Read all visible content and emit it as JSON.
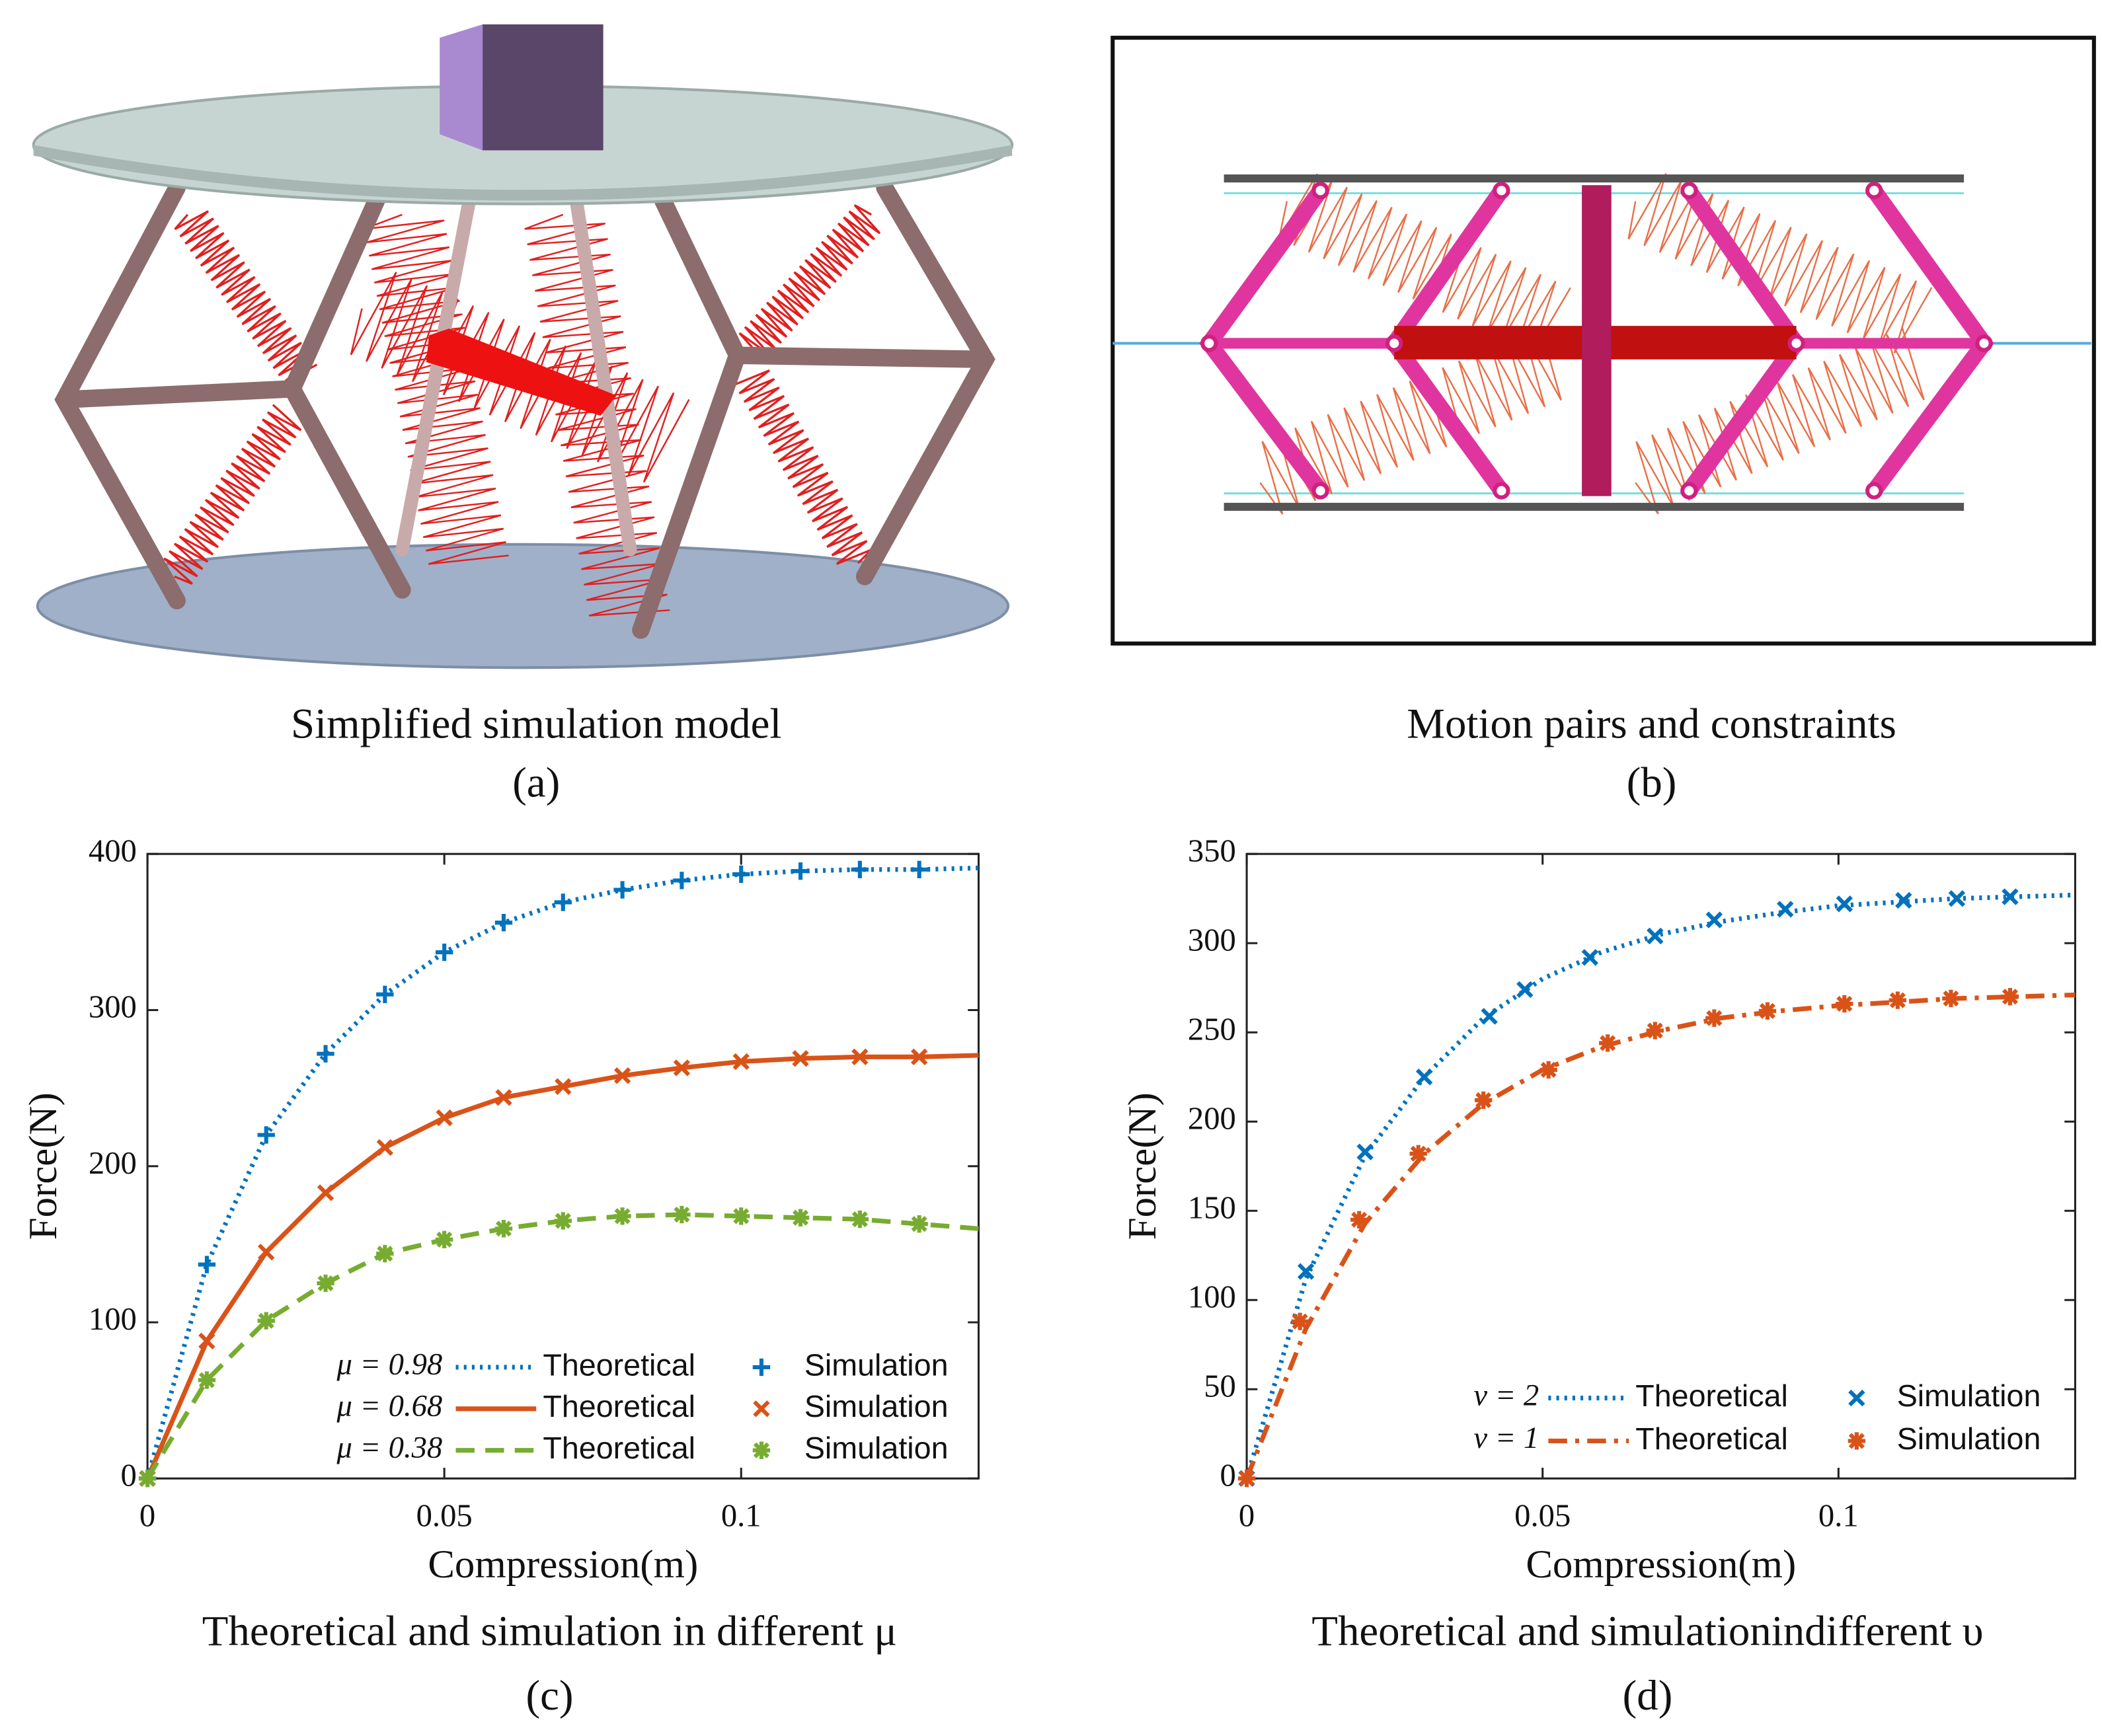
{
  "panels": [
    {
      "caption": "Simplified simulation model",
      "label": "(a)"
    },
    {
      "caption": "Motion pairs and constraints",
      "label": "(b)"
    }
  ],
  "chart_data": [
    {
      "type": "line",
      "caption": "Theoretical and simulation in different μ",
      "label": "(c)",
      "xlabel": "Compression(m)",
      "ylabel": "Force(N)",
      "xlim": [
        0,
        0.14
      ],
      "xticks": [
        0,
        0.05,
        0.1
      ],
      "ylim": [
        0,
        400
      ],
      "yticks": [
        0,
        100,
        200,
        300,
        400
      ],
      "series": [
        {
          "group": "μ = 0.98",
          "name": "Theoretical",
          "color": "#0072BD",
          "style": "dotted",
          "x": [
            0,
            0.01,
            0.02,
            0.03,
            0.04,
            0.05,
            0.06,
            0.07,
            0.08,
            0.09,
            0.1,
            0.11,
            0.12,
            0.13,
            0.14
          ],
          "values": [
            0,
            137,
            220,
            272,
            310,
            337,
            356,
            369,
            377,
            383,
            387,
            389,
            390,
            390,
            391
          ]
        },
        {
          "name": "Simulation",
          "color": "#0072BD",
          "marker": "plus",
          "x": [
            0,
            0.01,
            0.02,
            0.03,
            0.04,
            0.05,
            0.06,
            0.07,
            0.08,
            0.09,
            0.1,
            0.11,
            0.12,
            0.13
          ],
          "values": [
            0,
            137,
            220,
            272,
            310,
            337,
            356,
            369,
            377,
            383,
            387,
            389,
            390,
            390
          ]
        },
        {
          "group": "μ = 0.68",
          "name": "Theoretical",
          "color": "#D95319",
          "style": "solid",
          "x": [
            0,
            0.01,
            0.02,
            0.03,
            0.04,
            0.05,
            0.06,
            0.07,
            0.08,
            0.09,
            0.1,
            0.11,
            0.12,
            0.13,
            0.14
          ],
          "values": [
            0,
            88,
            145,
            183,
            212,
            231,
            244,
            251,
            258,
            263,
            267,
            269,
            270,
            270,
            271
          ]
        },
        {
          "name": "Simulation",
          "color": "#D95319",
          "marker": "cross",
          "x": [
            0,
            0.01,
            0.02,
            0.03,
            0.04,
            0.05,
            0.06,
            0.07,
            0.08,
            0.09,
            0.1,
            0.11,
            0.12,
            0.13
          ],
          "values": [
            0,
            88,
            145,
            183,
            212,
            231,
            244,
            251,
            258,
            263,
            267,
            269,
            270,
            270
          ]
        },
        {
          "group": "μ = 0.38",
          "name": "Theoretical",
          "color": "#77AC30",
          "style": "dashed",
          "x": [
            0,
            0.01,
            0.02,
            0.03,
            0.04,
            0.05,
            0.06,
            0.07,
            0.08,
            0.09,
            0.1,
            0.11,
            0.12,
            0.13,
            0.14
          ],
          "values": [
            0,
            63,
            101,
            125,
            144,
            153,
            160,
            165,
            168,
            169,
            168,
            167,
            166,
            163,
            160
          ]
        },
        {
          "name": "Simulation",
          "color": "#77AC30",
          "marker": "star",
          "x": [
            0,
            0.01,
            0.02,
            0.03,
            0.04,
            0.05,
            0.06,
            0.07,
            0.08,
            0.09,
            0.1,
            0.11,
            0.12,
            0.13
          ],
          "values": [
            0,
            63,
            101,
            125,
            144,
            153,
            160,
            165,
            168,
            169,
            168,
            167,
            166,
            163
          ]
        }
      ]
    },
    {
      "type": "line",
      "caption": "Theoretical and simulationindifferent υ",
      "label": "(d)",
      "xlabel": "Compression(m)",
      "ylabel": "Force(N)",
      "xlim": [
        0,
        0.14
      ],
      "xticks": [
        0,
        0.05,
        0.1
      ],
      "ylim": [
        0,
        350
      ],
      "yticks": [
        0,
        50,
        100,
        150,
        200,
        250,
        300,
        350
      ],
      "series": [
        {
          "group": "ν = 2",
          "name": "Theoretical",
          "color": "#0072BD",
          "style": "dotted",
          "x": [
            0,
            0.01,
            0.02,
            0.03,
            0.04,
            0.05,
            0.06,
            0.07,
            0.08,
            0.09,
            0.1,
            0.11,
            0.12,
            0.13,
            0.14
          ],
          "values": [
            0,
            112,
            181,
            225,
            258,
            280,
            295,
            305,
            312,
            317,
            321,
            323,
            325,
            326,
            327
          ]
        },
        {
          "name": "Simulation",
          "color": "#0072BD",
          "marker": "cross",
          "x": [
            0,
            0.01,
            0.02,
            0.03,
            0.041,
            0.047,
            0.058,
            0.069,
            0.079,
            0.091,
            0.101,
            0.111,
            0.12,
            0.129
          ],
          "values": [
            0,
            116,
            183,
            225,
            259,
            274,
            292,
            304,
            313,
            319,
            322,
            324,
            325,
            326
          ]
        },
        {
          "group": "ν = 1",
          "name": "Theoretical",
          "color": "#D95319",
          "style": "dashdot",
          "x": [
            0,
            0.01,
            0.02,
            0.03,
            0.04,
            0.05,
            0.06,
            0.07,
            0.08,
            0.09,
            0.1,
            0.11,
            0.12,
            0.13,
            0.14
          ],
          "values": [
            0,
            84,
            143,
            182,
            210,
            229,
            242,
            251,
            258,
            262,
            265,
            267,
            269,
            270,
            271
          ]
        },
        {
          "name": "Simulation",
          "color": "#D95319",
          "marker": "star",
          "x": [
            0,
            0.009,
            0.019,
            0.029,
            0.04,
            0.051,
            0.061,
            0.069,
            0.079,
            0.088,
            0.101,
            0.11,
            0.119,
            0.129
          ],
          "values": [
            0,
            88,
            145,
            182,
            212,
            229,
            244,
            251,
            258,
            262,
            266,
            268,
            269,
            270
          ]
        }
      ]
    }
  ]
}
